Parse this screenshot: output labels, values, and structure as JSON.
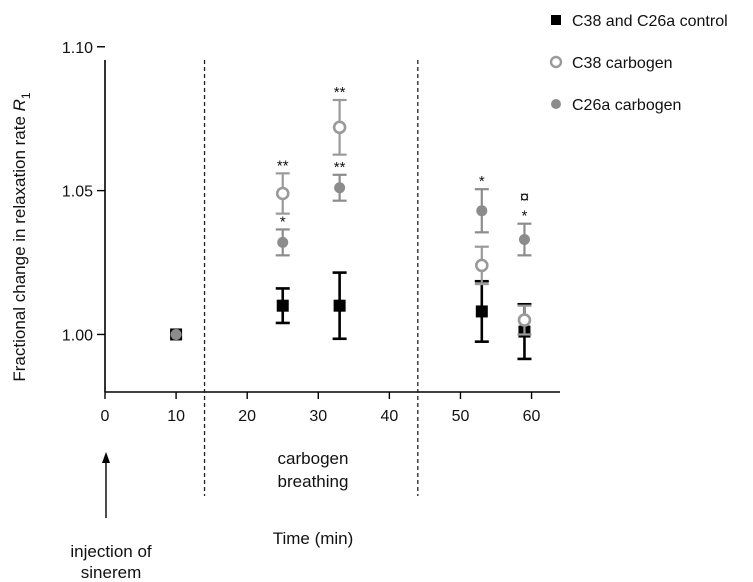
{
  "chart_data": {
    "type": "scatter",
    "ylabel_main": "Fractional change in relaxation rate ",
    "ylabel_sym": "R",
    "ylabel_sub": "1",
    "xlabel": "Time (min)",
    "xlim": [
      0,
      64
    ],
    "ylim": [
      0.98,
      1.11
    ],
    "xticks": [
      0,
      10,
      20,
      30,
      40,
      50,
      60
    ],
    "xtick_labels": [
      "0",
      "10",
      "20",
      "30",
      "40",
      "50",
      "60"
    ],
    "yticks": [
      1.0,
      1.05,
      1.1
    ],
    "ytick_labels": [
      "1.00",
      "1.05",
      "1.10"
    ],
    "vlines": [
      14,
      44
    ],
    "annotations": {
      "phase_line1": "carbogen",
      "phase_line2": "breathing",
      "injection_line1": "injection of",
      "injection_line2": "sinerem"
    },
    "legend_position": "top-right",
    "series": [
      {
        "name": "C38 and C26a control",
        "marker": "square-filled",
        "color": "#000000",
        "points": [
          {
            "x": 10,
            "y": 1.0,
            "err": 0,
            "label": ""
          },
          {
            "x": 25,
            "y": 1.01,
            "err": 0.006,
            "label": ""
          },
          {
            "x": 33,
            "y": 1.01,
            "err": 0.0115,
            "label": ""
          },
          {
            "x": 53,
            "y": 1.008,
            "err": 0.0105,
            "label": ""
          },
          {
            "x": 59,
            "y": 1.001,
            "err": 0.0095,
            "label": ""
          }
        ]
      },
      {
        "name": "C38 carbogen",
        "marker": "circle-open",
        "color": "#9a9a9a",
        "points": [
          {
            "x": 25,
            "y": 1.049,
            "err": 0.007,
            "label": "**"
          },
          {
            "x": 33,
            "y": 1.072,
            "err": 0.0095,
            "label": "**"
          },
          {
            "x": 53,
            "y": 1.024,
            "err": 0.0065,
            "label": ""
          },
          {
            "x": 59,
            "y": 1.005,
            "err": 0.005,
            "label": ""
          }
        ]
      },
      {
        "name": "C26a carbogen",
        "marker": "circle-filled",
        "color": "#8c8c8c",
        "points": [
          {
            "x": 10,
            "y": 1.0,
            "err": 0,
            "label": ""
          },
          {
            "x": 25,
            "y": 1.032,
            "err": 0.0045,
            "label": "*"
          },
          {
            "x": 33,
            "y": 1.051,
            "err": 0.0045,
            "label": "**"
          },
          {
            "x": 53,
            "y": 1.043,
            "err": 0.0075,
            "label": "*"
          },
          {
            "x": 59,
            "y": 1.033,
            "err": 0.0055,
            "label": "*"
          }
        ]
      }
    ],
    "extra_marks": [
      {
        "x": 59,
        "y": 1.048,
        "text": "¤"
      }
    ]
  }
}
